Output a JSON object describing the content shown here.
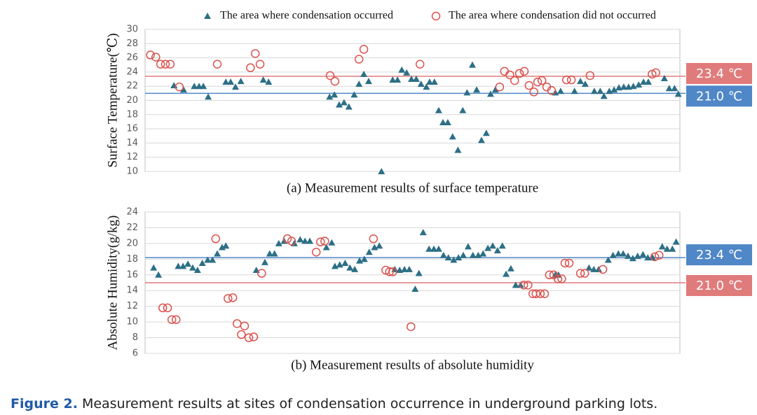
{
  "chart_data": [
    {
      "type": "scatter",
      "ylabel": "Surface Temperature(℃)",
      "xlabel": "(a) Measurement results of surface temperature",
      "xlim": [
        0,
        100
      ],
      "ylim": [
        10,
        30
      ],
      "yticks": [
        10,
        12,
        14,
        16,
        18,
        20,
        22,
        24,
        26,
        28,
        30
      ],
      "grid": true,
      "legend": "top",
      "lines": [
        {
          "value": 23.4,
          "label": "23.4 ℃",
          "color": "#e07b7b"
        },
        {
          "value": 21.0,
          "label": "21.0 ℃",
          "color": "#4f87c7"
        }
      ],
      "series": [
        {
          "name": "The area where condensation occurred",
          "marker": "triangle",
          "color": "#2d6f86",
          "x": [
            5.4,
            7.2,
            9.2,
            10.1,
            10.9,
            11.8,
            15.1,
            16.0,
            16.9,
            17.9,
            22.1,
            23.1,
            34.5,
            35.4,
            36.3,
            37.2,
            38.1,
            39.1,
            40.0,
            40.9,
            41.8,
            44.2,
            46.3,
            47.2,
            48.0,
            48.9,
            49.8,
            50.7,
            51.6,
            52.6,
            53.2,
            54.1,
            54.9,
            55.7,
            56.6,
            57.5,
            58.5,
            59.4,
            60.2,
            61.2,
            62.0,
            62.9,
            63.8,
            64.6,
            65.5,
            76.7,
            77.7,
            80.3,
            81.4,
            82.3,
            84.0,
            85.1,
            85.8,
            86.8,
            87.7,
            88.6,
            89.5,
            90.4,
            91.3,
            92.3,
            93.2,
            94.1,
            97.1,
            98.0,
            99.0,
            99.7
          ],
          "values": [
            22.1,
            21.5,
            22.0,
            22.0,
            22.0,
            20.5,
            22.6,
            22.6,
            21.9,
            22.7,
            22.9,
            22.6,
            20.5,
            20.8,
            19.4,
            19.7,
            19.1,
            20.8,
            22.3,
            23.7,
            22.7,
            10.0,
            22.9,
            22.9,
            24.3,
            23.9,
            23.0,
            23.0,
            22.3,
            21.9,
            22.6,
            22.6,
            18.6,
            16.9,
            16.9,
            14.9,
            13.0,
            18.6,
            21.1,
            25.0,
            21.5,
            14.4,
            15.4,
            20.9,
            21.5,
            21.1,
            21.3,
            21.3,
            22.7,
            22.3,
            21.3,
            21.3,
            20.6,
            21.3,
            21.5,
            21.8,
            21.9,
            21.9,
            22.0,
            22.2,
            22.6,
            22.6,
            23.1,
            21.7,
            21.7,
            20.9
          ]
        },
        {
          "name": "The area where condensation did not occurred",
          "marker": "circle",
          "color": "#d9534f",
          "x": [
            1.0,
            2.0,
            2.9,
            3.8,
            4.7,
            6.4,
            13.5,
            19.7,
            20.6,
            21.5,
            34.6,
            35.5,
            40.0,
            40.9,
            51.4,
            66.3,
            67.2,
            68.2,
            69.1,
            70.0,
            70.9,
            71.8,
            72.7,
            73.4,
            74.2,
            75.1,
            76.0,
            78.8,
            79.7,
            83.2,
            94.8,
            95.5
          ],
          "values": [
            26.4,
            26.1,
            25.1,
            25.1,
            25.1,
            21.9,
            25.1,
            24.6,
            26.6,
            25.1,
            23.5,
            22.7,
            25.8,
            27.2,
            25.1,
            21.9,
            24.1,
            23.6,
            22.8,
            23.8,
            24.1,
            22.1,
            21.2,
            22.6,
            22.8,
            21.9,
            21.4,
            22.9,
            22.9,
            23.5,
            23.7,
            23.9
          ]
        }
      ]
    },
    {
      "type": "scatter",
      "ylabel": "Absolute Humidity(g/kg)",
      "xlabel": "(b) Measurement results of absolute humidity",
      "xlim": [
        0,
        100
      ],
      "ylim": [
        6,
        24
      ],
      "yticks": [
        6,
        8,
        10,
        12,
        14,
        16,
        18,
        20,
        22,
        24
      ],
      "grid": true,
      "lines": [
        {
          "value": 18.2,
          "label": "23.4 ℃",
          "color": "#4f87c7"
        },
        {
          "value": 15.0,
          "label": "21.0 ℃",
          "color": "#e07b7b"
        }
      ],
      "series": [
        {
          "marker": "triangle",
          "color": "#2d6f86",
          "x": [
            1.6,
            2.5,
            6.2,
            7.1,
            8.0,
            8.9,
            9.8,
            10.7,
            11.7,
            12.6,
            13.5,
            14.4,
            15.1,
            20.8,
            22.4,
            23.3,
            24.2,
            25.0,
            26.0,
            27.9,
            29.0,
            29.9,
            30.8,
            33.9,
            34.9,
            35.5,
            36.4,
            37.4,
            38.3,
            39.2,
            40.1,
            41.0,
            41.9,
            42.9,
            43.8,
            46.7,
            47.6,
            48.5,
            49.4,
            50.5,
            51.2,
            52.0,
            53.1,
            54.0,
            54.9,
            55.8,
            56.7,
            57.7,
            58.6,
            59.5,
            60.4,
            61.3,
            62.3,
            63.2,
            64.1,
            65.0,
            65.9,
            66.8,
            67.5,
            68.4,
            69.3,
            70.2,
            76.7,
            77.3,
            83.0,
            83.9,
            84.8,
            86.6,
            87.5,
            88.5,
            89.4,
            90.3,
            91.2,
            92.1,
            93.1,
            94.0,
            94.9,
            96.7,
            97.6,
            98.6,
            99.3
          ],
          "values": [
            16.9,
            16.0,
            17.1,
            17.1,
            17.4,
            16.9,
            16.6,
            17.5,
            17.9,
            17.9,
            18.7,
            19.5,
            19.7,
            16.6,
            17.6,
            18.7,
            18.7,
            20.0,
            20.3,
            20.0,
            20.5,
            20.3,
            20.3,
            19.5,
            20.1,
            17.1,
            17.3,
            17.5,
            16.9,
            16.7,
            17.8,
            18.0,
            18.9,
            19.5,
            19.7,
            16.7,
            16.6,
            16.7,
            16.7,
            14.2,
            16.2,
            21.4,
            19.3,
            19.3,
            19.3,
            18.5,
            18.2,
            17.9,
            18.2,
            18.5,
            19.6,
            18.5,
            18.5,
            18.7,
            19.4,
            19.7,
            19.1,
            19.7,
            16.1,
            16.8,
            14.7,
            14.7,
            16.0,
            16.0,
            16.9,
            16.7,
            16.7,
            17.9,
            18.5,
            18.7,
            18.7,
            18.4,
            18.1,
            18.4,
            18.6,
            18.2,
            18.2,
            19.6,
            19.3,
            19.3,
            20.2
          ]
        },
        {
          "marker": "circle",
          "color": "#d9534f",
          "x": [
            3.3,
            4.2,
            5.0,
            5.8,
            13.2,
            15.5,
            16.4,
            17.2,
            18.0,
            18.6,
            19.4,
            20.3,
            21.8,
            26.6,
            27.4,
            32.0,
            32.8,
            33.6,
            42.7,
            45.0,
            45.7,
            46.3,
            49.7,
            70.8,
            71.6,
            72.5,
            73.1,
            73.9,
            74.7,
            75.6,
            76.4,
            77.2,
            77.9,
            78.5,
            79.3,
            81.4,
            82.2,
            85.6,
            95.3,
            96.1
          ],
          "values": [
            11.8,
            11.8,
            10.3,
            10.3,
            20.6,
            13.0,
            13.1,
            9.8,
            8.4,
            9.5,
            8.0,
            8.1,
            16.2,
            20.6,
            20.3,
            18.9,
            20.2,
            20.3,
            20.6,
            16.6,
            16.4,
            16.4,
            9.4,
            14.7,
            14.7,
            13.6,
            13.6,
            13.6,
            13.6,
            16.0,
            16.0,
            15.5,
            15.5,
            17.5,
            17.5,
            16.2,
            16.2,
            16.7,
            18.3,
            18.5
          ]
        }
      ]
    }
  ],
  "caption": {
    "label": "Figure 2.",
    "text": "Measurement results at sites of condensation occurrence in underground parking lots."
  }
}
